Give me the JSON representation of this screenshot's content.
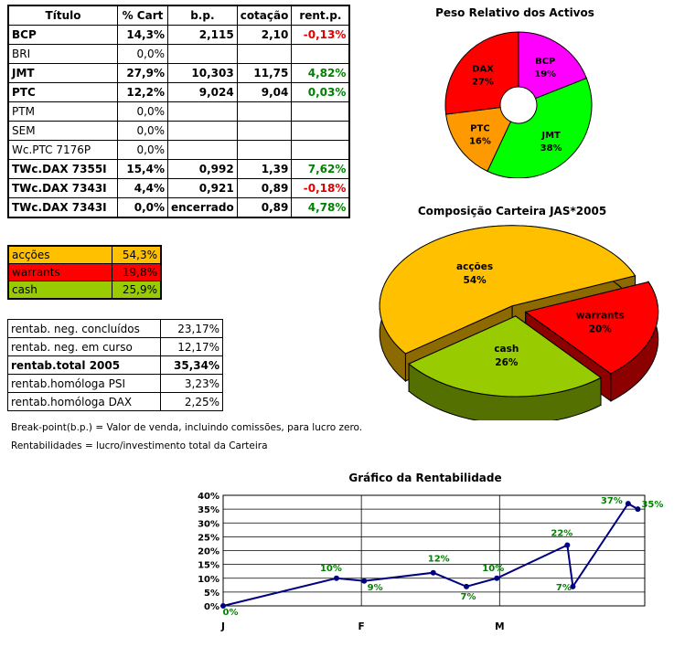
{
  "holdings": {
    "headers": [
      "Título",
      "% Cart",
      "b.p.",
      "cotação",
      "rent.p."
    ],
    "rows": [
      {
        "titulo": "BCP",
        "cart": "14,3%",
        "bp": "2,115",
        "cotacao": "2,10",
        "rent": "-0,13%",
        "bold": true,
        "sign": "neg"
      },
      {
        "titulo": "BRI",
        "cart": "0,0%",
        "bp": "",
        "cotacao": "",
        "rent": "",
        "bold": false,
        "sign": ""
      },
      {
        "titulo": "JMT",
        "cart": "27,9%",
        "bp": "10,303",
        "cotacao": "11,75",
        "rent": "4,82%",
        "bold": true,
        "sign": "pos"
      },
      {
        "titulo": "PTC",
        "cart": "12,2%",
        "bp": "9,024",
        "cotacao": "9,04",
        "rent": "0,03%",
        "bold": true,
        "sign": "pos"
      },
      {
        "titulo": "PTM",
        "cart": "0,0%",
        "bp": "",
        "cotacao": "",
        "rent": "",
        "bold": false,
        "sign": ""
      },
      {
        "titulo": "SEM",
        "cart": "0,0%",
        "bp": "",
        "cotacao": "",
        "rent": "",
        "bold": false,
        "sign": ""
      },
      {
        "titulo": "Wc.PTC 7176P",
        "cart": "0,0%",
        "bp": "",
        "cotacao": "",
        "rent": "",
        "bold": false,
        "sign": ""
      },
      {
        "titulo": "TWc.DAX 7355I",
        "cart": "15,4%",
        "bp": "0,992",
        "cotacao": "1,39",
        "rent": "7,62%",
        "bold": true,
        "sign": "pos"
      },
      {
        "titulo": "TWc.DAX 7343I",
        "cart": "4,4%",
        "bp": "0,921",
        "cotacao": "0,89",
        "rent": "-0,18%",
        "bold": true,
        "sign": "neg"
      },
      {
        "titulo": "TWc.DAX 7343I",
        "cart": "0,0%",
        "bp": "encerrado",
        "cotacao": "0,89",
        "rent": "4,78%",
        "bold": true,
        "sign": "pos"
      }
    ]
  },
  "composition": [
    {
      "label": "acções",
      "value": "54,3%",
      "color": "#ffc000"
    },
    {
      "label": "warrants",
      "value": "19,8%",
      "color": "#ff0000"
    },
    {
      "label": "cash",
      "value": "25,9%",
      "color": "#99cc00"
    }
  ],
  "rentab": [
    {
      "label": "rentab. neg. concluídos",
      "value": "23,17%",
      "bold": false
    },
    {
      "label": "rentab. neg. em curso",
      "value": "12,17%",
      "bold": false
    },
    {
      "label": "rentab.total 2005",
      "value": "35,34%",
      "bold": true
    },
    {
      "label": "rentab.homóloga PSI",
      "value": "3,23%",
      "bold": false
    },
    {
      "label": "rentab.homóloga DAX",
      "value": "2,25%",
      "bold": false
    }
  ],
  "notes": {
    "breakpoint": "Break-point(b.p.) = Valor de venda, incluindo comissões, para lucro zero.",
    "rentabilidades": "Rentabilidades = lucro/investimento total da Carteira"
  },
  "chart_data": [
    {
      "type": "pie",
      "title": "Peso Relativo dos Activos",
      "donut": true,
      "categories": [
        "BCP",
        "JMT",
        "PTC",
        "DAX"
      ],
      "values": [
        19,
        38,
        16,
        27
      ],
      "labels": [
        "19%",
        "38%",
        "16%",
        "27%"
      ],
      "colors": [
        "#ff00ff",
        "#00ff00",
        "#ff9900",
        "#ff0000"
      ]
    },
    {
      "type": "pie",
      "title": "Composição Carteira JAS*2005",
      "style": "3d-exploded",
      "categories": [
        "acções",
        "warrants",
        "cash"
      ],
      "values": [
        54,
        20,
        26
      ],
      "labels": [
        "54%",
        "20%",
        "26%"
      ],
      "colors": [
        "#ffc000",
        "#ff0000",
        "#99cc00"
      ]
    },
    {
      "type": "line",
      "title": "Gráfico da Rentabilidade",
      "xlabel": "",
      "ylabel": "",
      "x_ticks": [
        "J",
        "F",
        "M"
      ],
      "x_tick_positions": [
        0,
        1,
        2
      ],
      "x_range": [
        0,
        3.05
      ],
      "ylim": [
        0,
        40
      ],
      "y_ticks": [
        "0%",
        "5%",
        "10%",
        "15%",
        "20%",
        "25%",
        "30%",
        "35%",
        "40%"
      ],
      "grid": true,
      "series": [
        {
          "name": "Rentabilidade",
          "color": "#000080",
          "x": [
            0,
            0.82,
            1.02,
            1.52,
            1.76,
            1.98,
            2.49,
            2.53,
            2.93,
            3.0
          ],
          "values": [
            0,
            10,
            9,
            12,
            7,
            10,
            22,
            7,
            37,
            35
          ],
          "labels": [
            "0%",
            "10%",
            "9%",
            "12%",
            "7%",
            "10%",
            "22%",
            "7%",
            "37%",
            "35%"
          ]
        }
      ]
    }
  ]
}
